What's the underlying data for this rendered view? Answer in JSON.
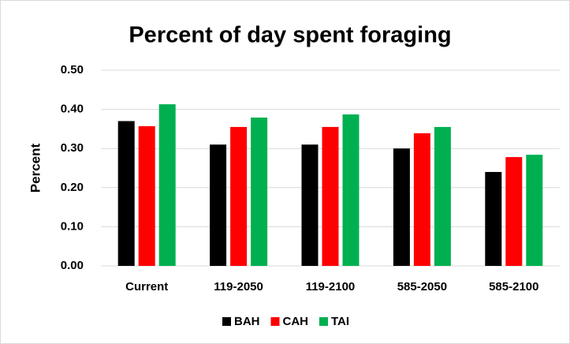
{
  "chart_data": {
    "type": "bar",
    "title": "Percent of day spent foraging",
    "y_label": "Percent",
    "categories": [
      "Current",
      "119-2050",
      "119-2100",
      "585-2050",
      "585-2100"
    ],
    "series": [
      {
        "name": "BAH",
        "color": "#000000",
        "values": [
          0.37,
          0.31,
          0.31,
          0.3,
          0.24
        ]
      },
      {
        "name": "CAH",
        "color": "#ff0000",
        "values": [
          0.357,
          0.355,
          0.355,
          0.339,
          0.278
        ]
      },
      {
        "name": "TAI",
        "color": "#00b050",
        "values": [
          0.413,
          0.379,
          0.387,
          0.355,
          0.284
        ]
      }
    ],
    "ylim": [
      0,
      0.5
    ],
    "yticks": [
      {
        "value": 0,
        "label": "0.00"
      },
      {
        "value": 0.1,
        "label": "0.10"
      },
      {
        "value": 0.2,
        "label": "0.20"
      },
      {
        "value": 0.3,
        "label": "0.30"
      },
      {
        "value": 0.4,
        "label": "0.40"
      },
      {
        "value": 0.5,
        "label": "0.50"
      }
    ],
    "grid": true,
    "legend": "bottom"
  }
}
